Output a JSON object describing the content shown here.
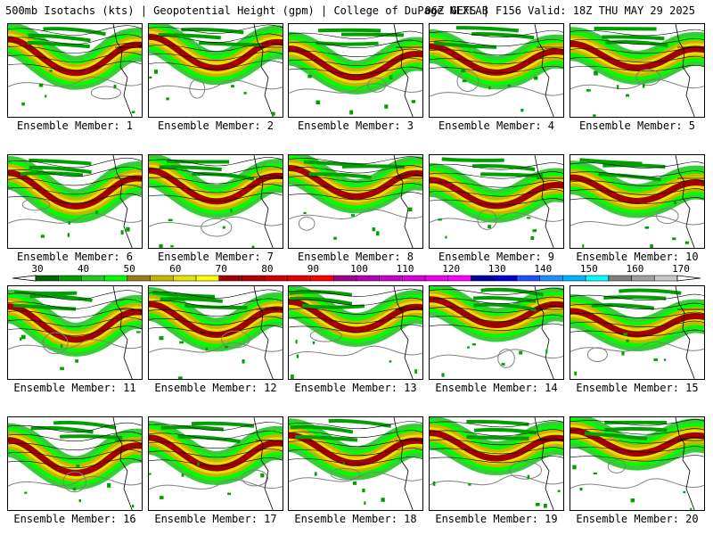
{
  "header": {
    "title_left": "500mb Isotachs (kts) | Geopotential Height (gpm) | College of DuPage NEXLAB",
    "title_right": "06Z GEFS | F156 Valid: 18Z THU MAY 29 2025"
  },
  "legend": {
    "tick_labels": [
      "30",
      "40",
      "50",
      "60",
      "70",
      "80",
      "90",
      "100",
      "110",
      "120",
      "130",
      "140",
      "150",
      "160",
      "170"
    ],
    "colors": [
      "#006400",
      "#00a000",
      "#22c722",
      "#00ff00",
      "#9a7a1a",
      "#c8b400",
      "#e8e000",
      "#ffff00",
      "#a00000",
      "#b80000",
      "#d00000",
      "#e80000",
      "#ff0000",
      "#a0008c",
      "#b400b4",
      "#c800c8",
      "#dc00dc",
      "#f000f0",
      "#ff00ff",
      "#0000a0",
      "#0000d0",
      "#1e50ff",
      "#1e90ff",
      "#00b4ff",
      "#00ffff",
      "#808080",
      "#a0a0a0",
      "#c8c8c8"
    ]
  },
  "panels": [
    {
      "label": "Ensemble Member: 1"
    },
    {
      "label": "Ensemble Member: 2"
    },
    {
      "label": "Ensemble Member: 3"
    },
    {
      "label": "Ensemble Member: 4"
    },
    {
      "label": "Ensemble Member: 5"
    },
    {
      "label": "Ensemble Member: 6"
    },
    {
      "label": "Ensemble Member: 7"
    },
    {
      "label": "Ensemble Member: 8"
    },
    {
      "label": "Ensemble Member: 9"
    },
    {
      "label": "Ensemble Member: 10"
    },
    {
      "label": "Ensemble Member: 11"
    },
    {
      "label": "Ensemble Member: 12"
    },
    {
      "label": "Ensemble Member: 13"
    },
    {
      "label": "Ensemble Member: 14"
    },
    {
      "label": "Ensemble Member: 15"
    },
    {
      "label": "Ensemble Member: 16"
    },
    {
      "label": "Ensemble Member: 17"
    },
    {
      "label": "Ensemble Member: 18"
    },
    {
      "label": "Ensemble Member: 19"
    },
    {
      "label": "Ensemble Member: 20"
    }
  ]
}
